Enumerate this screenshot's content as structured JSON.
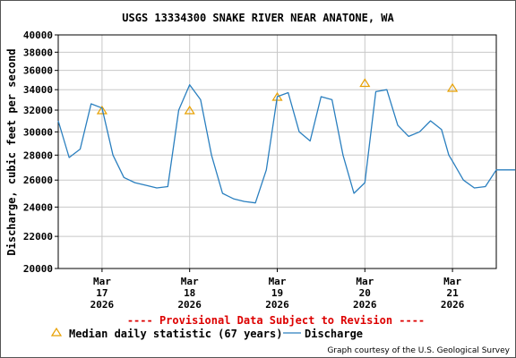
{
  "chart_data": {
    "type": "line",
    "title": "USGS 13334300 SNAKE RIVER NEAR ANATONE, WA",
    "ylabel": "Discharge, cubic feet per second",
    "xlabel": "",
    "ylim": [
      20000,
      40000
    ],
    "y_scale": "log",
    "y_ticks": [
      "20000",
      "22000",
      "24000",
      "26000",
      "28000",
      "30000",
      "32000",
      "34000",
      "36000",
      "38000",
      "40000"
    ],
    "x_ticks": [
      {
        "l1": "Mar",
        "l2": "17",
        "l3": "2026"
      },
      {
        "l1": "Mar",
        "l2": "18",
        "l3": "2026"
      },
      {
        "l1": "Mar",
        "l2": "19",
        "l3": "2026"
      },
      {
        "l1": "Mar",
        "l2": "20",
        "l3": "2026"
      },
      {
        "l1": "Mar",
        "l2": "21",
        "l3": "2026"
      }
    ],
    "grid": true,
    "provisional_note": "---- Provisional Data Subject to Revision ----",
    "legend": {
      "median_label": "Median daily statistic (67 years)",
      "discharge_label": "Discharge"
    },
    "credit": "Graph courtesy of the U.S. Geological Survey",
    "colors": {
      "discharge": "#2a7fbf",
      "median": "#e8a000",
      "provisional": "#dd0000",
      "grid": "#c8c8c8"
    },
    "series": [
      {
        "name": "Median daily statistic (67 years)",
        "kind": "marker",
        "x": [
          "2026-03-17 00:00",
          "2026-03-18 00:00",
          "2026-03-19 00:00",
          "2026-03-20 00:00",
          "2026-03-21 00:00"
        ],
        "values": [
          32000,
          32000,
          33300,
          34700,
          34200
        ]
      },
      {
        "name": "Discharge",
        "kind": "line",
        "x": [
          "2026-03-16 12:00",
          "2026-03-16 15:00",
          "2026-03-16 18:00",
          "2026-03-16 21:00",
          "2026-03-17 00:00",
          "2026-03-17 03:00",
          "2026-03-17 06:00",
          "2026-03-17 09:00",
          "2026-03-17 12:00",
          "2026-03-17 15:00",
          "2026-03-17 18:00",
          "2026-03-17 21:00",
          "2026-03-18 00:00",
          "2026-03-18 03:00",
          "2026-03-18 06:00",
          "2026-03-18 09:00",
          "2026-03-18 12:00",
          "2026-03-18 15:00",
          "2026-03-18 18:00",
          "2026-03-18 21:00",
          "2026-03-19 00:00",
          "2026-03-19 03:00",
          "2026-03-19 06:00",
          "2026-03-19 09:00",
          "2026-03-19 12:00",
          "2026-03-19 15:00",
          "2026-03-19 18:00",
          "2026-03-19 21:00",
          "2026-03-20 00:00",
          "2026-03-20 03:00",
          "2026-03-20 06:00",
          "2026-03-20 09:00",
          "2026-03-20 12:00",
          "2026-03-20 15:00",
          "2026-03-20 18:00",
          "2026-03-20 21:00",
          "2026-03-20 23:00",
          "2026-03-21 00:00",
          "2026-03-21 03:00",
          "2026-03-21 06:00",
          "2026-03-21 09:00",
          "2026-03-21 12:00",
          "2026-03-21 15:00",
          "2026-03-21 18:00"
        ],
        "values": [
          31000,
          27800,
          28500,
          32600,
          32200,
          28000,
          26200,
          25800,
          25600,
          25400,
          25500,
          32000,
          34500,
          33000,
          28000,
          25000,
          24600,
          24400,
          24300,
          26800,
          33300,
          33700,
          30000,
          29200,
          33300,
          33000,
          28000,
          25000,
          25800,
          33800,
          34000,
          30600,
          29600,
          30000,
          31000,
          30200,
          28000,
          27500,
          26000,
          25400,
          25500,
          26800,
          26800,
          26800
        ]
      }
    ]
  }
}
